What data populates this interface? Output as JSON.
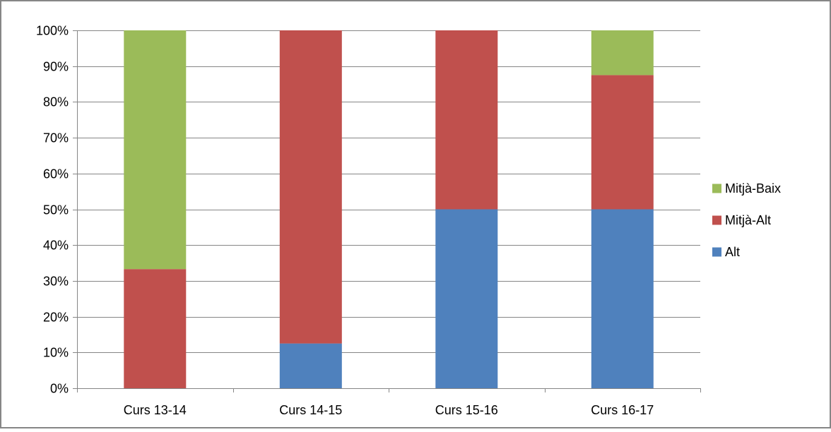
{
  "chart_data": {
    "type": "bar",
    "stacked": true,
    "percent_stacked": true,
    "categories": [
      "Curs 13-14",
      "Curs 14-15",
      "Curs 15-16",
      "Curs 16-17"
    ],
    "series": [
      {
        "name": "Alt",
        "color": "#4F81BD",
        "values": [
          0,
          12.5,
          50,
          50
        ]
      },
      {
        "name": "Mitjà-Alt",
        "color": "#C0504D",
        "values": [
          33.3,
          87.5,
          50,
          37.5
        ]
      },
      {
        "name": "Mitjà-Baix",
        "color": "#9BBB59",
        "values": [
          66.7,
          0,
          0,
          12.5
        ]
      }
    ],
    "ylim": [
      0,
      100
    ],
    "yticks": [
      "0%",
      "10%",
      "20%",
      "30%",
      "40%",
      "50%",
      "60%",
      "70%",
      "80%",
      "90%",
      "100%"
    ],
    "grid": true,
    "legend": {
      "placement": "right",
      "order": [
        "Mitjà-Baix",
        "Mitjà-Alt",
        "Alt"
      ]
    },
    "title": "",
    "xlabel": "",
    "ylabel": ""
  }
}
